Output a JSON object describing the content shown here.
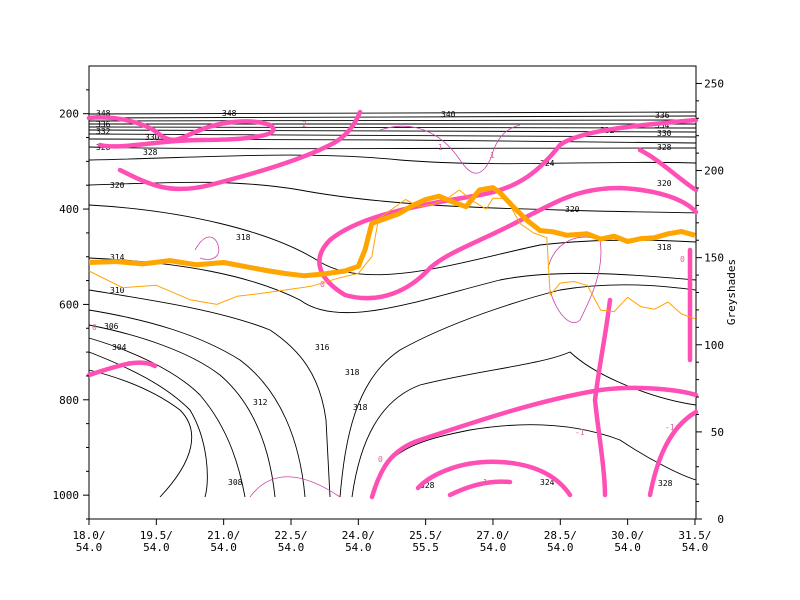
{
  "chart_data": {
    "type": "line",
    "title": "",
    "y_left": {
      "range": [
        1050,
        100
      ],
      "ticks": [
        200,
        400,
        600,
        800,
        1000
      ]
    },
    "y_right": {
      "label": "Greyshades",
      "range": [
        0,
        260
      ],
      "ticks": [
        0,
        50,
        100,
        150,
        200,
        250
      ]
    },
    "x": {
      "categories": [
        {
          "top": "18.0/",
          "bottom": "54.0"
        },
        {
          "top": "19.5/",
          "bottom": "54.0"
        },
        {
          "top": "21.0/",
          "bottom": "54.0"
        },
        {
          "top": "22.5/",
          "bottom": "54.0"
        },
        {
          "top": "24.0/",
          "bottom": "54.0"
        },
        {
          "top": "25.5/",
          "bottom": "55.5"
        },
        {
          "top": "27.0/",
          "bottom": "54.0"
        },
        {
          "top": "28.5/",
          "bottom": "54.0"
        },
        {
          "top": "30.0/",
          "bottom": "54.0"
        },
        {
          "top": "31.5/",
          "bottom": "54.0"
        }
      ]
    },
    "theta_contour_labels": [
      "348",
      "340",
      "336",
      "334",
      "332",
      "330",
      "328",
      "324",
      "320",
      "318",
      "316",
      "314",
      "312",
      "310",
      "308",
      "306",
      "304"
    ],
    "pv_contour_labels": [
      "1",
      "2",
      "0",
      "-1"
    ],
    "series": [
      {
        "role": "greyshade-thick",
        "color": "#ffa500",
        "points": [
          [
            0,
            512
          ],
          [
            0.4,
            510
          ],
          [
            0.8,
            515
          ],
          [
            1.2,
            508
          ],
          [
            1.6,
            517
          ],
          [
            2.0,
            512
          ],
          [
            2.3,
            520
          ],
          [
            2.6,
            528
          ],
          [
            2.9,
            535
          ],
          [
            3.2,
            540
          ],
          [
            3.5,
            536
          ],
          [
            3.8,
            530
          ],
          [
            4.0,
            520
          ],
          [
            4.1,
            485
          ],
          [
            4.2,
            430
          ],
          [
            4.4,
            420
          ],
          [
            4.6,
            410
          ],
          [
            4.8,
            393
          ],
          [
            5.0,
            380
          ],
          [
            5.2,
            373
          ],
          [
            5.4,
            385
          ],
          [
            5.6,
            395
          ],
          [
            5.8,
            360
          ],
          [
            6.0,
            355
          ],
          [
            6.1,
            365
          ],
          [
            6.3,
            395
          ],
          [
            6.5,
            423
          ],
          [
            6.7,
            445
          ],
          [
            6.9,
            448
          ],
          [
            7.1,
            455
          ],
          [
            7.4,
            452
          ],
          [
            7.6,
            463
          ],
          [
            7.8,
            457
          ],
          [
            8.0,
            468
          ],
          [
            8.2,
            462
          ],
          [
            8.4,
            460
          ],
          [
            8.6,
            452
          ],
          [
            8.8,
            447
          ],
          [
            9.0,
            455
          ]
        ]
      },
      {
        "role": "greyshade-thin",
        "color": "#ffa500",
        "points": [
          [
            0,
            530
          ],
          [
            0.5,
            565
          ],
          [
            1.0,
            560
          ],
          [
            1.5,
            590
          ],
          [
            1.9,
            600
          ],
          [
            2.2,
            583
          ],
          [
            2.5,
            578
          ],
          [
            2.9,
            570
          ],
          [
            3.3,
            562
          ],
          [
            3.7,
            545
          ],
          [
            4.0,
            535
          ],
          [
            4.2,
            500
          ],
          [
            4.3,
            420
          ],
          [
            4.5,
            400
          ],
          [
            4.7,
            380
          ],
          [
            4.9,
            395
          ],
          [
            5.1,
            390
          ],
          [
            5.3,
            380
          ],
          [
            5.5,
            360
          ],
          [
            5.7,
            383
          ],
          [
            5.9,
            400
          ],
          [
            6.0,
            377
          ],
          [
            6.2,
            378
          ],
          [
            6.4,
            430
          ],
          [
            6.6,
            450
          ],
          [
            6.8,
            460
          ],
          [
            6.85,
            580
          ],
          [
            7.0,
            555
          ],
          [
            7.2,
            552
          ],
          [
            7.4,
            560
          ],
          [
            7.6,
            612
          ],
          [
            7.8,
            615
          ],
          [
            8.0,
            585
          ],
          [
            8.2,
            605
          ],
          [
            8.4,
            610
          ],
          [
            8.6,
            595
          ],
          [
            8.8,
            620
          ],
          [
            9.0,
            630
          ]
        ]
      }
    ]
  }
}
